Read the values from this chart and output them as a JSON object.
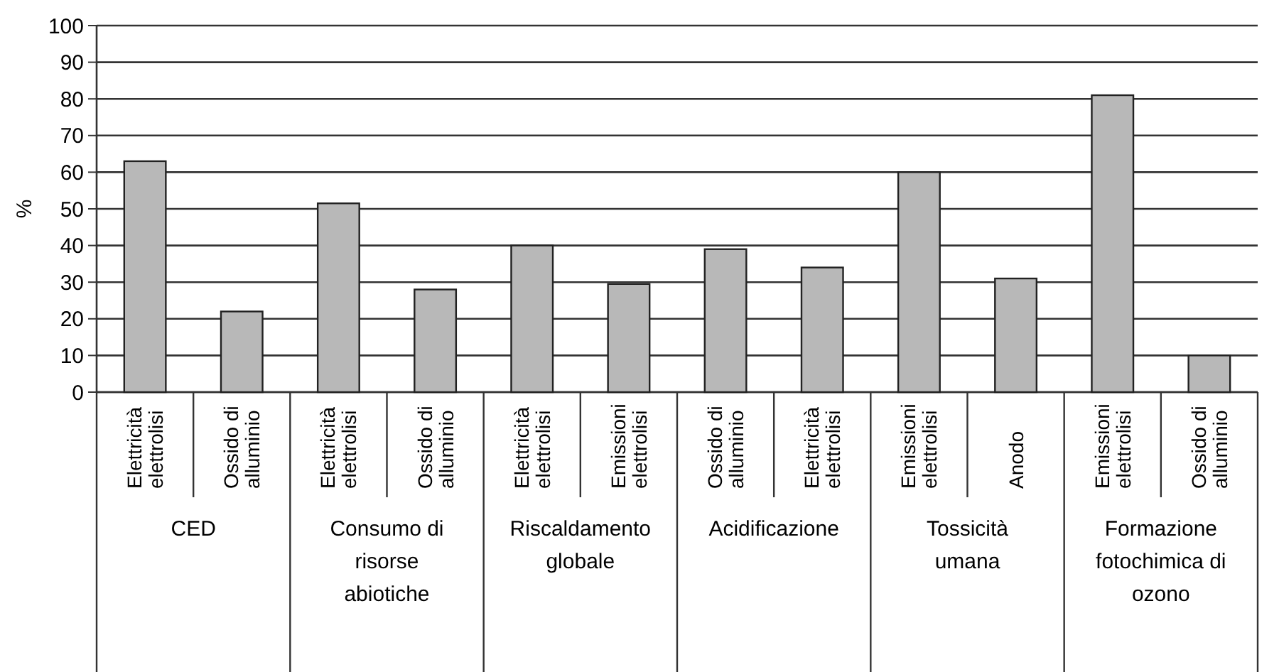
{
  "chart_data": {
    "type": "bar",
    "ylabel": "%",
    "categories": [
      "Elettricità\nelettrolisi",
      "Ossido di\nalluminio",
      "Elettricità\nelettrolisi",
      "Ossido di\nalluminio",
      "Elettricità\nelettrolisi",
      "Emissioni\nelettrolisi",
      "Ossido di\nalluminio",
      "Elettricità\nelettrolisi",
      "Emissioni\nelettrolisi",
      "Anodo",
      "Emissioni\nelettrolisi",
      "Ossido di\nalluminio"
    ],
    "values": [
      63,
      22,
      51.5,
      28,
      40,
      29.5,
      39,
      34,
      60,
      31,
      81,
      10
    ],
    "color": "#b8b8b8",
    "annotations": [
      "CED",
      "Consumo di\nrisorse\nabiotiche",
      "Riscaldamento\nglobale",
      "Acidificazione",
      "Tossicità\numana",
      "Formazione\nfotochimica di\nozono"
    ],
    "ylim": [
      0,
      100
    ],
    "yticks": [
      0,
      10,
      20,
      30,
      40,
      50,
      60,
      70,
      80,
      90,
      100
    ],
    "grid": "y"
  }
}
